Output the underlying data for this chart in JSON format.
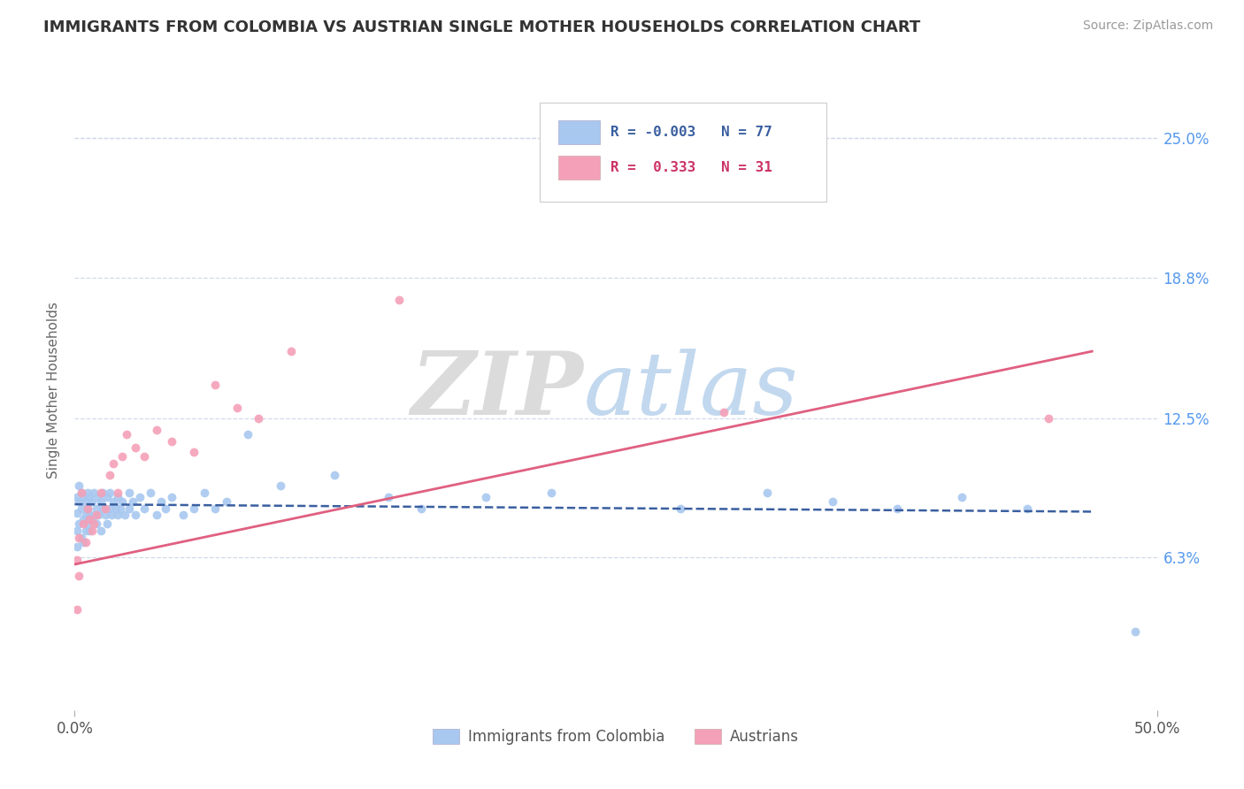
{
  "title": "IMMIGRANTS FROM COLOMBIA VS AUSTRIAN SINGLE MOTHER HOUSEHOLDS CORRELATION CHART",
  "source_text": "Source: ZipAtlas.com",
  "ylabel": "Single Mother Households",
  "xmin": 0.0,
  "xmax": 0.5,
  "ymin": -0.005,
  "ymax": 0.28,
  "yticks": [
    0.063,
    0.125,
    0.188,
    0.25
  ],
  "ytick_labels": [
    "6.3%",
    "12.5%",
    "18.8%",
    "25.0%"
  ],
  "legend_entries": [
    {
      "label": "Immigrants from Colombia",
      "color": "#a8c8f0",
      "R": "-0.003",
      "N": "77"
    },
    {
      "label": "Austrians",
      "color": "#f4a0b8",
      "R": "0.333",
      "N": "31"
    }
  ],
  "blue_scatter_x": [
    0.001,
    0.001,
    0.001,
    0.001,
    0.002,
    0.002,
    0.002,
    0.003,
    0.003,
    0.003,
    0.004,
    0.004,
    0.004,
    0.005,
    0.005,
    0.005,
    0.006,
    0.006,
    0.006,
    0.007,
    0.007,
    0.007,
    0.008,
    0.008,
    0.009,
    0.009,
    0.01,
    0.01,
    0.011,
    0.011,
    0.012,
    0.012,
    0.013,
    0.013,
    0.014,
    0.015,
    0.015,
    0.016,
    0.016,
    0.017,
    0.018,
    0.019,
    0.02,
    0.02,
    0.021,
    0.022,
    0.023,
    0.025,
    0.025,
    0.027,
    0.028,
    0.03,
    0.032,
    0.035,
    0.038,
    0.04,
    0.042,
    0.045,
    0.05,
    0.055,
    0.06,
    0.065,
    0.07,
    0.08,
    0.095,
    0.12,
    0.145,
    0.16,
    0.19,
    0.22,
    0.28,
    0.32,
    0.35,
    0.38,
    0.41,
    0.44,
    0.49
  ],
  "blue_scatter_y": [
    0.083,
    0.09,
    0.075,
    0.068,
    0.088,
    0.078,
    0.095,
    0.085,
    0.092,
    0.072,
    0.09,
    0.08,
    0.07,
    0.088,
    0.082,
    0.075,
    0.092,
    0.085,
    0.078,
    0.09,
    0.082,
    0.075,
    0.088,
    0.08,
    0.092,
    0.082,
    0.085,
    0.078,
    0.09,
    0.082,
    0.088,
    0.075,
    0.085,
    0.092,
    0.082,
    0.09,
    0.078,
    0.085,
    0.092,
    0.082,
    0.088,
    0.085,
    0.082,
    0.09,
    0.085,
    0.088,
    0.082,
    0.092,
    0.085,
    0.088,
    0.082,
    0.09,
    0.085,
    0.092,
    0.082,
    0.088,
    0.085,
    0.09,
    0.082,
    0.085,
    0.092,
    0.085,
    0.088,
    0.118,
    0.095,
    0.1,
    0.09,
    0.085,
    0.09,
    0.092,
    0.085,
    0.092,
    0.088,
    0.085,
    0.09,
    0.085,
    0.03
  ],
  "pink_scatter_x": [
    0.001,
    0.001,
    0.002,
    0.002,
    0.003,
    0.004,
    0.005,
    0.006,
    0.007,
    0.008,
    0.009,
    0.01,
    0.012,
    0.014,
    0.016,
    0.018,
    0.02,
    0.022,
    0.024,
    0.028,
    0.032,
    0.038,
    0.045,
    0.055,
    0.065,
    0.075,
    0.085,
    0.1,
    0.15,
    0.3,
    0.45
  ],
  "pink_scatter_y": [
    0.062,
    0.04,
    0.072,
    0.055,
    0.092,
    0.078,
    0.07,
    0.085,
    0.08,
    0.075,
    0.078,
    0.082,
    0.092,
    0.085,
    0.1,
    0.105,
    0.092,
    0.108,
    0.118,
    0.112,
    0.108,
    0.12,
    0.115,
    0.11,
    0.14,
    0.13,
    0.125,
    0.155,
    0.178,
    0.128,
    0.125
  ],
  "blue_line_x": [
    0.0,
    0.47
  ],
  "blue_line_y": [
    0.0868,
    0.0835
  ],
  "pink_line_x": [
    0.0,
    0.47
  ],
  "pink_line_y": [
    0.06,
    0.155
  ],
  "watermark_zip": "ZIP",
  "watermark_atlas": "atlas",
  "scatter_size": 50,
  "blue_color": "#a8c8f0",
  "pink_color": "#f4a0b8",
  "blue_line_color": "#3a5fa0",
  "pink_line_color": "#e06080",
  "grid_color": "#d0d8e8",
  "right_axis_color": "#5599ee"
}
